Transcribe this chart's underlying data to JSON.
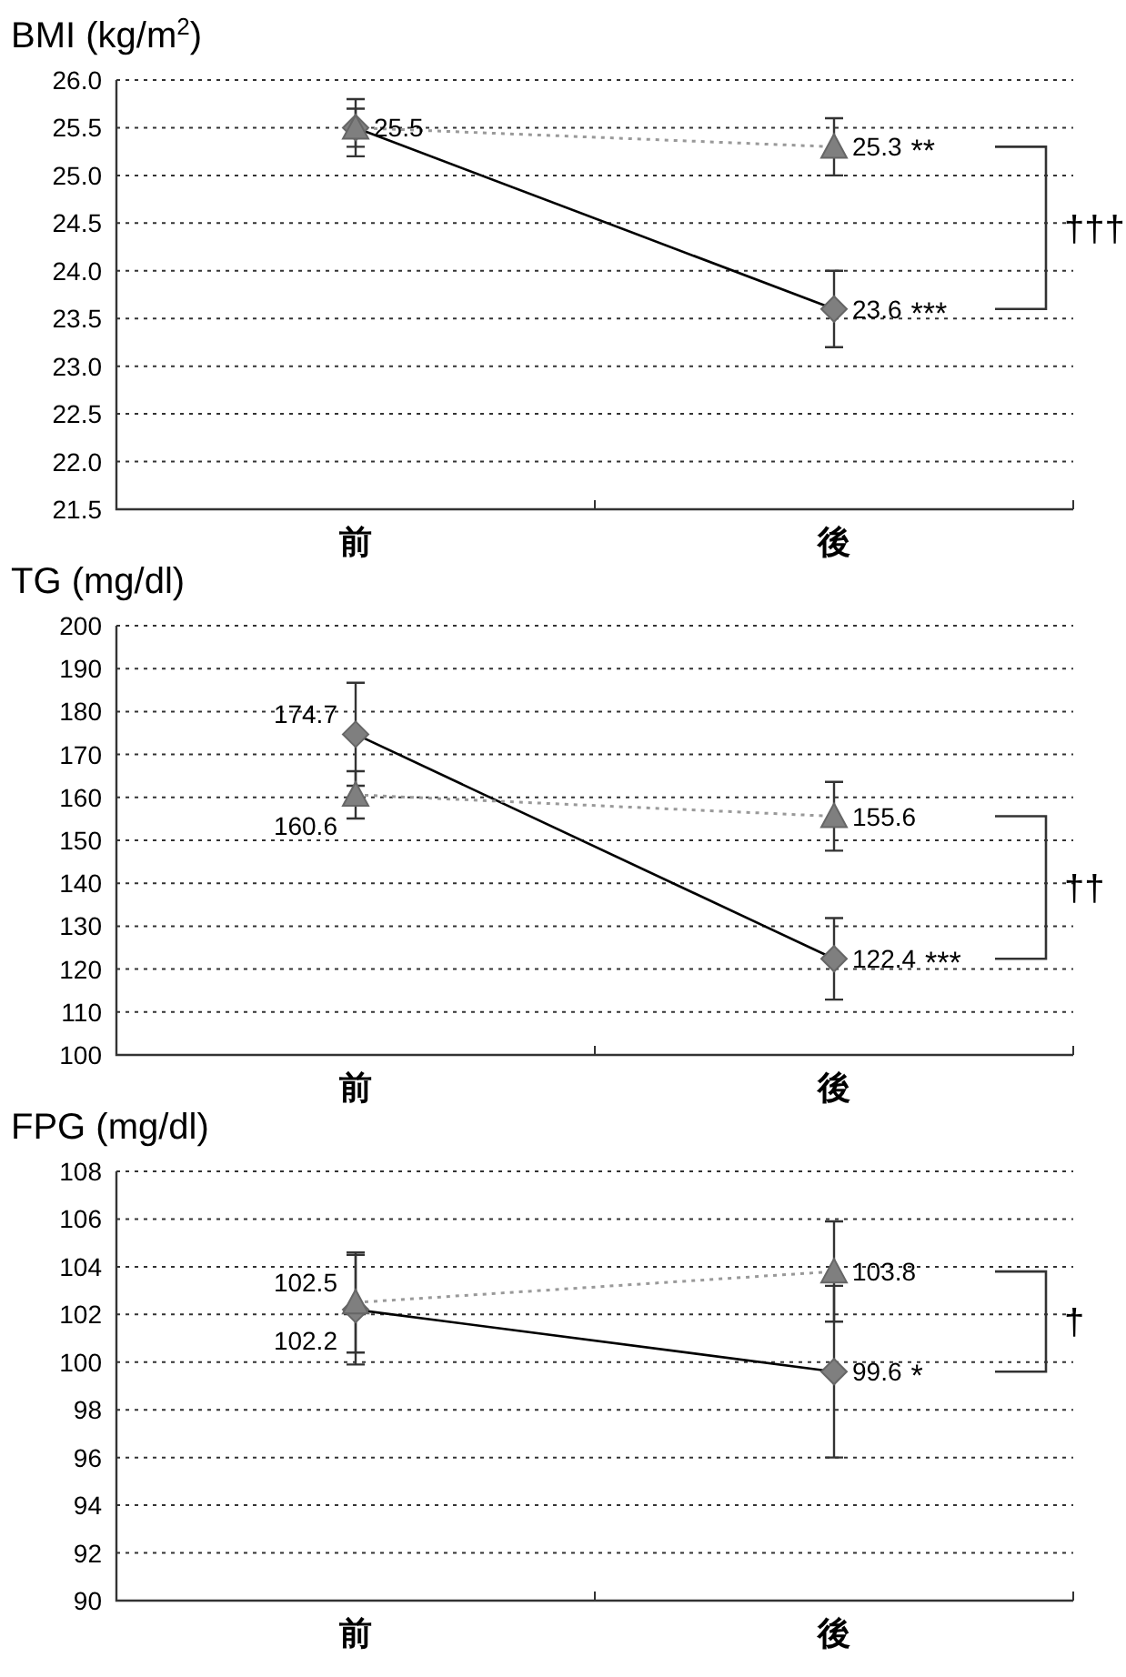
{
  "chart_data": [
    {
      "type": "line",
      "title": "BMI (kg/m$^{2}$)",
      "categories": [
        "前",
        "後"
      ],
      "ylim": [
        21.5,
        26.0
      ],
      "yticks": [
        {
          "value": 21.5,
          "label": "21.5"
        },
        {
          "value": 22,
          "label": "22.0"
        },
        {
          "value": 22.5,
          "label": "22.5"
        },
        {
          "value": 23,
          "label": "23.0"
        },
        {
          "value": 23.5,
          "label": "23.5"
        },
        {
          "value": 24,
          "label": "24.0"
        },
        {
          "value": 24.5,
          "label": "24.5"
        },
        {
          "value": 25,
          "label": "25.0"
        },
        {
          "value": 25.5,
          "label": "25.5"
        },
        {
          "value": 26,
          "label": "26.0"
        }
      ],
      "grid": "y",
      "series": [
        {
          "color": "#000000",
          "marker": "diamond",
          "line_style": "solid",
          "values": [
            25.5,
            23.6
          ],
          "errors": [
            0.3,
            0.4
          ],
          "value_labels": [
            "25.5",
            "23.6"
          ]
        },
        {
          "color": "#999999",
          "marker": "triangle",
          "line_style": "dotted",
          "values": [
            25.5,
            25.3
          ],
          "errors": [
            0.2,
            0.3
          ],
          "value_labels": [
            null,
            "25.3"
          ]
        }
      ],
      "annotations": [
        {
          "text": "**",
          "x": "後",
          "y": 25.3
        },
        {
          "text": "***",
          "x": "後",
          "y": 23.6
        },
        "†††"
      ]
    },
    {
      "type": "line",
      "title": "TG (mg/dl)",
      "categories": [
        "前",
        "後"
      ],
      "ylim": [
        100,
        200
      ],
      "yticks": [
        100,
        110,
        120,
        130,
        140,
        150,
        160,
        170,
        180,
        190,
        200
      ],
      "grid": "y",
      "series": [
        {
          "color": "#000000",
          "marker": "diamond",
          "line_style": "solid",
          "values": [
            174.7,
            122.4
          ],
          "errors": [
            12,
            9.5
          ],
          "value_labels": [
            "174.7",
            "122.4"
          ]
        },
        {
          "color": "#999999",
          "marker": "triangle",
          "line_style": "dotted",
          "values": [
            160.6,
            155.6
          ],
          "errors": [
            5.5,
            8
          ],
          "value_labels": [
            "160.6",
            "155.6"
          ]
        }
      ],
      "annotations": [
        {
          "text": "***",
          "x": "後",
          "y": 122.4
        },
        "††"
      ]
    },
    {
      "type": "line",
      "title": "FPG (mg/dl)",
      "categories": [
        "前",
        "後"
      ],
      "ylim": [
        90,
        108
      ],
      "yticks": [
        90,
        92,
        94,
        96,
        98,
        100,
        102,
        104,
        106,
        108
      ],
      "grid": "y",
      "series": [
        {
          "color": "#000000",
          "marker": "diamond",
          "line_style": "solid",
          "values": [
            102.2,
            99.6
          ],
          "errors": [
            2.3,
            3.6
          ],
          "value_labels": [
            "102.2",
            "99.6"
          ]
        },
        {
          "color": "#999999",
          "marker": "triangle",
          "line_style": "dotted",
          "values": [
            102.5,
            103.8
          ],
          "errors": [
            2.1,
            2.1
          ],
          "value_labels": [
            "102.5",
            "103.8"
          ]
        }
      ],
      "annotations": [
        {
          "text": "*",
          "x": "後",
          "y": 99.6
        },
        "†"
      ]
    }
  ]
}
